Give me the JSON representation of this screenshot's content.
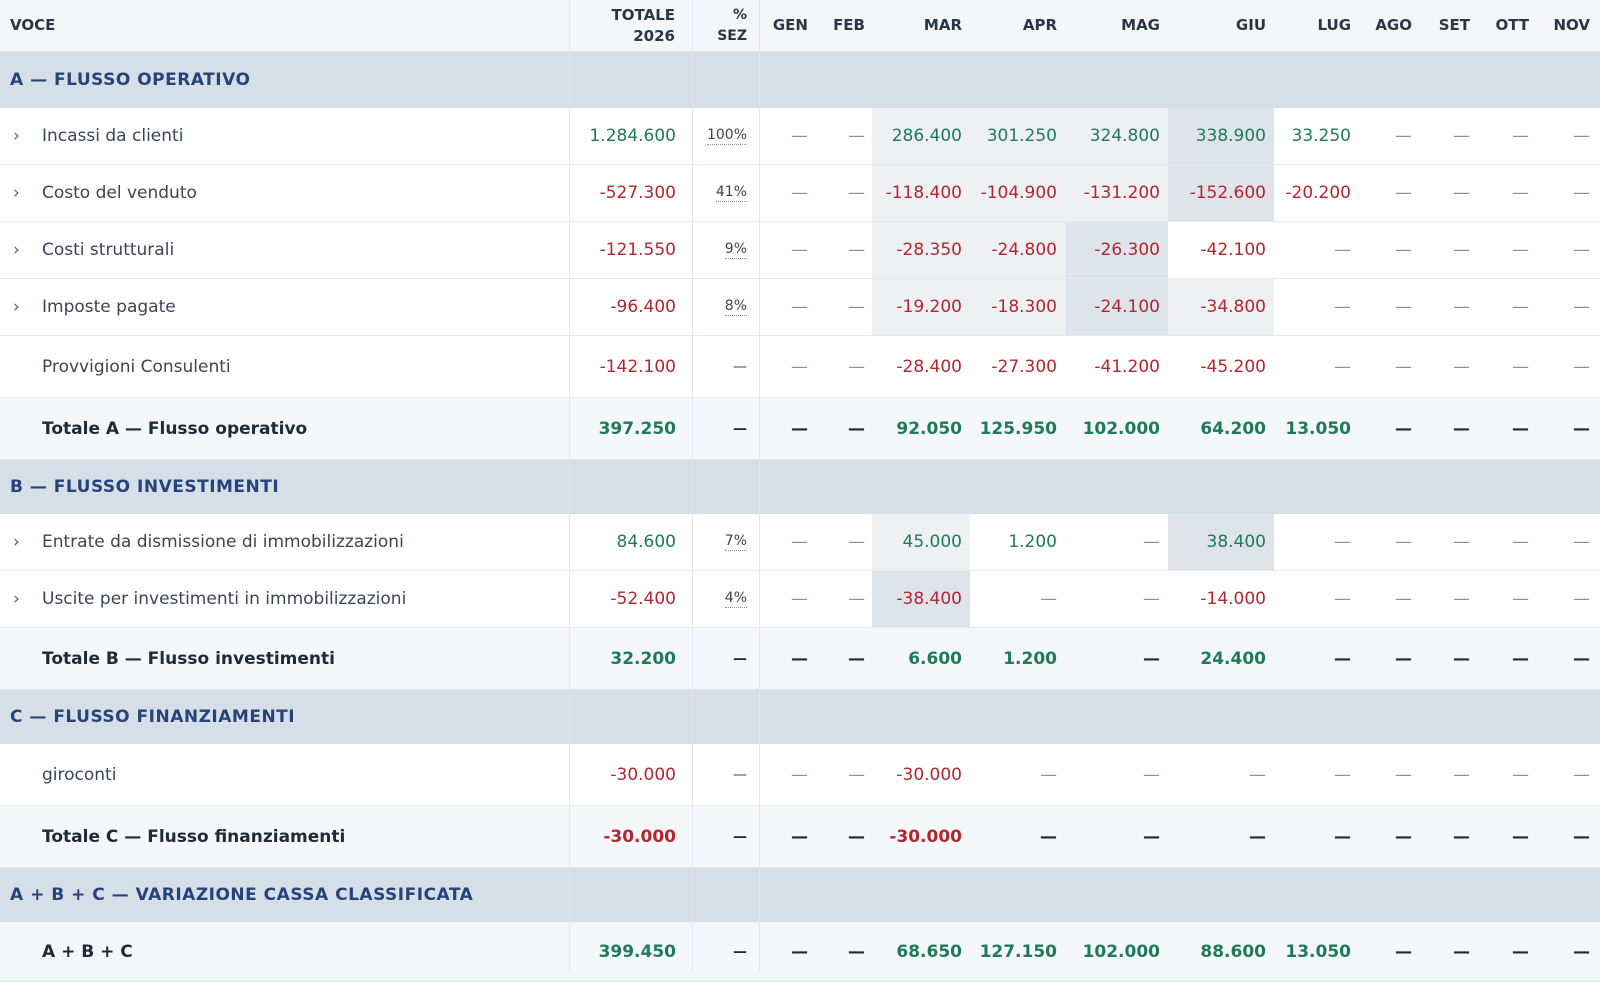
{
  "columns": {
    "voce": "VOCE",
    "totale_line1": "TOTALE",
    "totale_line2": "2026",
    "pct_line1": "%",
    "pct_line2": "SEZ",
    "months": [
      "GEN",
      "FEB",
      "MAR",
      "APR",
      "MAG",
      "GIU",
      "LUG",
      "AGO",
      "SET",
      "OTT",
      "NOV"
    ]
  },
  "sections": {
    "a": "A — FLUSSO OPERATIVO",
    "b": "B — FLUSSO INVESTIMENTI",
    "c": "C — FLUSSO FINANZIAMENTI",
    "abc": "A + B + C — VARIAZIONE CASSA CLASSIFICATA"
  },
  "rows": [
    {
      "label": "Incassi da clienti",
      "total": "1.284.600",
      "pct": "100%",
      "months": [
        "—",
        "—",
        "286.400",
        "301.250",
        "324.800",
        "338.900",
        "33.250",
        "—",
        "—",
        "—",
        "—"
      ]
    },
    {
      "label": "Costo del venduto",
      "total": "-527.300",
      "pct": "41%",
      "months": [
        "—",
        "—",
        "-118.400",
        "-104.900",
        "-131.200",
        "-152.600",
        "-20.200",
        "—",
        "—",
        "—",
        "—"
      ]
    },
    {
      "label": "Costi strutturali",
      "total": "-121.550",
      "pct": "9%",
      "months": [
        "—",
        "—",
        "-28.350",
        "-24.800",
        "-26.300",
        "-42.100",
        "—",
        "—",
        "—",
        "—",
        "—"
      ]
    },
    {
      "label": "Imposte pagate",
      "total": "-96.400",
      "pct": "8%",
      "months": [
        "—",
        "—",
        "-19.200",
        "-18.300",
        "-24.100",
        "-34.800",
        "—",
        "—",
        "—",
        "—",
        "—"
      ]
    },
    {
      "label": "Provvigioni Consulenti",
      "total": "-142.100",
      "pct": "—",
      "months": [
        "—",
        "—",
        "-28.400",
        "-27.300",
        "-41.200",
        "-45.200",
        "—",
        "—",
        "—",
        "—",
        "—"
      ]
    },
    {
      "label": "Totale A — Flusso operativo",
      "total": "397.250",
      "pct": "—",
      "months": [
        "—",
        "—",
        "92.050",
        "125.950",
        "102.000",
        "64.200",
        "13.050",
        "—",
        "—",
        "—",
        "—"
      ]
    },
    {
      "label": "Entrate da dismissione di immobilizzazioni",
      "total": "84.600",
      "pct": "7%",
      "months": [
        "—",
        "—",
        "45.000",
        "1.200",
        "—",
        "38.400",
        "—",
        "—",
        "—",
        "—",
        "—"
      ]
    },
    {
      "label": "Uscite per investimenti in immobilizzazioni",
      "total": "-52.400",
      "pct": "4%",
      "months": [
        "—",
        "—",
        "-38.400",
        "—",
        "—",
        "-14.000",
        "—",
        "—",
        "—",
        "—",
        "—"
      ]
    },
    {
      "label": "Totale B — Flusso investimenti",
      "total": "32.200",
      "pct": "—",
      "months": [
        "—",
        "—",
        "6.600",
        "1.200",
        "—",
        "24.400",
        "—",
        "—",
        "—",
        "—",
        "—"
      ]
    },
    {
      "label": "giroconti",
      "total": "-30.000",
      "pct": "—",
      "months": [
        "—",
        "—",
        "-30.000",
        "—",
        "—",
        "—",
        "—",
        "—",
        "—",
        "—",
        "—"
      ]
    },
    {
      "label": "Totale C — Flusso finanziamenti",
      "total": "-30.000",
      "pct": "—",
      "months": [
        "—",
        "—",
        "-30.000",
        "—",
        "—",
        "—",
        "—",
        "—",
        "—",
        "—",
        "—"
      ]
    },
    {
      "label": "A + B + C",
      "total": "399.450",
      "pct": "—",
      "months": [
        "—",
        "—",
        "68.650",
        "127.150",
        "102.000",
        "88.600",
        "13.050",
        "—",
        "—",
        "—",
        "—"
      ]
    }
  ],
  "colors": {
    "positive": "#1f7a58",
    "negative": "#b3262e",
    "section_bg": "#d6dee8",
    "section_text": "#26447a"
  },
  "icons": {
    "expand": "chevron-right-icon"
  }
}
